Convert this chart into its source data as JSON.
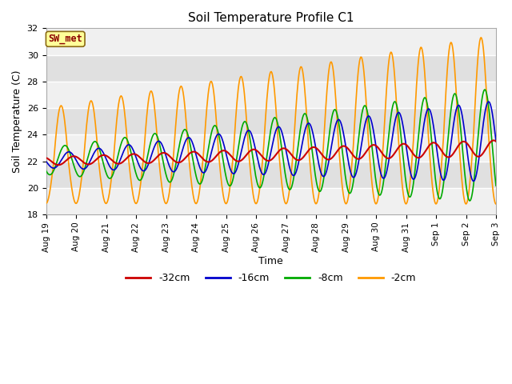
{
  "title": "Soil Temperature Profile C1",
  "xlabel": "Time",
  "ylabel": "Soil Temperature (C)",
  "ylim": [
    18,
    32
  ],
  "yticks": [
    18,
    20,
    22,
    24,
    26,
    28,
    30,
    32
  ],
  "x_tick_labels": [
    "Aug 19",
    "Aug 20",
    "Aug 21",
    "Aug 22",
    "Aug 23",
    "Aug 24",
    "Aug 25",
    "Aug 26",
    "Aug 27",
    "Aug 28",
    "Aug 29",
    "Aug 30",
    "Aug 31",
    "Sep 1",
    "Sep 2",
    "Sep 3"
  ],
  "legend_labels": [
    "-32cm",
    "-16cm",
    "-8cm",
    "-2cm"
  ],
  "line_colors": [
    "#cc0000",
    "#0000cc",
    "#00aa00",
    "#ff9900"
  ],
  "annotation_text": "SW_met",
  "annotation_color": "#8b0000",
  "annotation_bg": "#ffff99",
  "plot_bg": "#e8e8e8",
  "grid_color": "#ffffff",
  "band_light": "#f0f0f0",
  "band_dark": "#e0e0e0"
}
